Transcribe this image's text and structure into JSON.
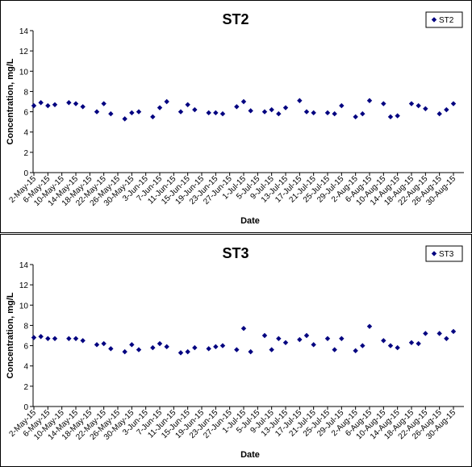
{
  "chart_data": [
    {
      "type": "scatter",
      "title": "ST2",
      "xlabel": "Date",
      "ylabel": "Concentration, mg/L",
      "ylim": [
        0,
        14
      ],
      "yticks": [
        "0",
        "2",
        "4",
        "6",
        "8",
        "10",
        "12",
        "14"
      ],
      "xlim": [
        "2015-05-02",
        "2015-08-30"
      ],
      "xticks": [
        "2-May-15",
        "6-May-15",
        "10-May-15",
        "14-May-15",
        "18-May-15",
        "22-May-15",
        "26-May-15",
        "30-May-15",
        "3-Jun-15",
        "7-Jun-15",
        "11-Jun-15",
        "15-Jun-15",
        "19-Jun-15",
        "23-Jun-15",
        "27-Jun-15",
        "1-Jul-15",
        "5-Jul-15",
        "9-Jul-15",
        "13-Jul-15",
        "17-Jul-15",
        "21-Jul-15",
        "25-Jul-15",
        "29-Jul-15",
        "2-Aug-15",
        "6-Aug-15",
        "10-Aug-15",
        "14-Aug-15",
        "18-Aug-15",
        "22-Aug-15",
        "26-Aug-15",
        "30-Aug-15"
      ],
      "grid": false,
      "legend": "top-right",
      "color": "#000080",
      "series": [
        {
          "name": "ST2",
          "x": [
            "2015-05-02",
            "2015-05-04",
            "2015-05-06",
            "2015-05-08",
            "2015-05-12",
            "2015-05-14",
            "2015-05-16",
            "2015-05-20",
            "2015-05-22",
            "2015-05-24",
            "2015-05-28",
            "2015-05-30",
            "2015-06-01",
            "2015-06-05",
            "2015-06-07",
            "2015-06-09",
            "2015-06-13",
            "2015-06-15",
            "2015-06-17",
            "2015-06-21",
            "2015-06-23",
            "2015-06-25",
            "2015-06-29",
            "2015-07-01",
            "2015-07-03",
            "2015-07-07",
            "2015-07-09",
            "2015-07-11",
            "2015-07-13",
            "2015-07-17",
            "2015-07-19",
            "2015-07-21",
            "2015-07-25",
            "2015-07-27",
            "2015-07-29",
            "2015-08-02",
            "2015-08-04",
            "2015-08-06",
            "2015-08-10",
            "2015-08-12",
            "2015-08-14",
            "2015-08-18",
            "2015-08-20",
            "2015-08-22",
            "2015-08-26",
            "2015-08-28",
            "2015-08-30"
          ],
          "values": [
            6.6,
            6.9,
            6.6,
            6.7,
            6.9,
            6.8,
            6.5,
            6.0,
            6.8,
            5.8,
            5.3,
            5.9,
            6.0,
            5.5,
            6.4,
            7.0,
            6.0,
            6.7,
            6.2,
            5.9,
            5.9,
            5.8,
            6.5,
            7.0,
            6.1,
            6.0,
            6.2,
            5.8,
            6.4,
            7.1,
            6.0,
            5.9,
            5.9,
            5.8,
            6.6,
            5.5,
            5.8,
            7.1,
            6.8,
            5.5,
            5.6,
            6.8,
            6.6,
            6.3,
            5.8,
            6.2,
            6.8
          ]
        }
      ]
    },
    {
      "type": "scatter",
      "title": "ST3",
      "xlabel": "Date",
      "ylabel": "Concentration, mg/L",
      "ylim": [
        0,
        14
      ],
      "yticks": [
        "0",
        "2",
        "4",
        "6",
        "8",
        "10",
        "12",
        "14"
      ],
      "xlim": [
        "2015-05-02",
        "2015-08-30"
      ],
      "xticks": [
        "2-May-15",
        "6-May-15",
        "10-May-15",
        "14-May-15",
        "18-May-15",
        "22-May-15",
        "26-May-15",
        "30-May-15",
        "3-Jun-15",
        "7-Jun-15",
        "11-Jun-15",
        "15-Jun-15",
        "19-Jun-15",
        "23-Jun-15",
        "27-Jun-15",
        "1-Jul-15",
        "5-Jul-15",
        "9-Jul-15",
        "13-Jul-15",
        "17-Jul-15",
        "21-Jul-15",
        "25-Jul-15",
        "29-Jul-15",
        "2-Aug-15",
        "6-Aug-15",
        "10-Aug-15",
        "14-Aug-15",
        "18-Aug-15",
        "22-Aug-15",
        "26-Aug-15",
        "30-Aug-15"
      ],
      "grid": false,
      "legend": "top-right",
      "color": "#000080",
      "series": [
        {
          "name": "ST3",
          "x": [
            "2015-05-02",
            "2015-05-04",
            "2015-05-06",
            "2015-05-08",
            "2015-05-12",
            "2015-05-14",
            "2015-05-16",
            "2015-05-20",
            "2015-05-22",
            "2015-05-24",
            "2015-05-28",
            "2015-05-30",
            "2015-06-01",
            "2015-06-05",
            "2015-06-07",
            "2015-06-09",
            "2015-06-13",
            "2015-06-15",
            "2015-06-17",
            "2015-06-21",
            "2015-06-23",
            "2015-06-25",
            "2015-06-29",
            "2015-07-01",
            "2015-07-03",
            "2015-07-07",
            "2015-07-09",
            "2015-07-11",
            "2015-07-13",
            "2015-07-17",
            "2015-07-19",
            "2015-07-21",
            "2015-07-25",
            "2015-07-27",
            "2015-07-29",
            "2015-08-02",
            "2015-08-04",
            "2015-08-06",
            "2015-08-10",
            "2015-08-12",
            "2015-08-14",
            "2015-08-18",
            "2015-08-20",
            "2015-08-22",
            "2015-08-26",
            "2015-08-28",
            "2015-08-30"
          ],
          "values": [
            6.8,
            6.9,
            6.7,
            6.7,
            6.7,
            6.7,
            6.5,
            6.1,
            6.2,
            5.7,
            5.4,
            6.1,
            5.6,
            5.8,
            6.2,
            5.9,
            5.3,
            5.4,
            5.8,
            5.7,
            5.9,
            6.0,
            5.6,
            7.7,
            5.4,
            7.0,
            5.6,
            6.7,
            6.3,
            6.6,
            7.0,
            6.1,
            6.7,
            5.6,
            6.7,
            5.5,
            6.0,
            7.9,
            6.5,
            6.0,
            5.8,
            6.3,
            6.2,
            7.2,
            7.2,
            6.7,
            7.4
          ]
        }
      ]
    }
  ]
}
